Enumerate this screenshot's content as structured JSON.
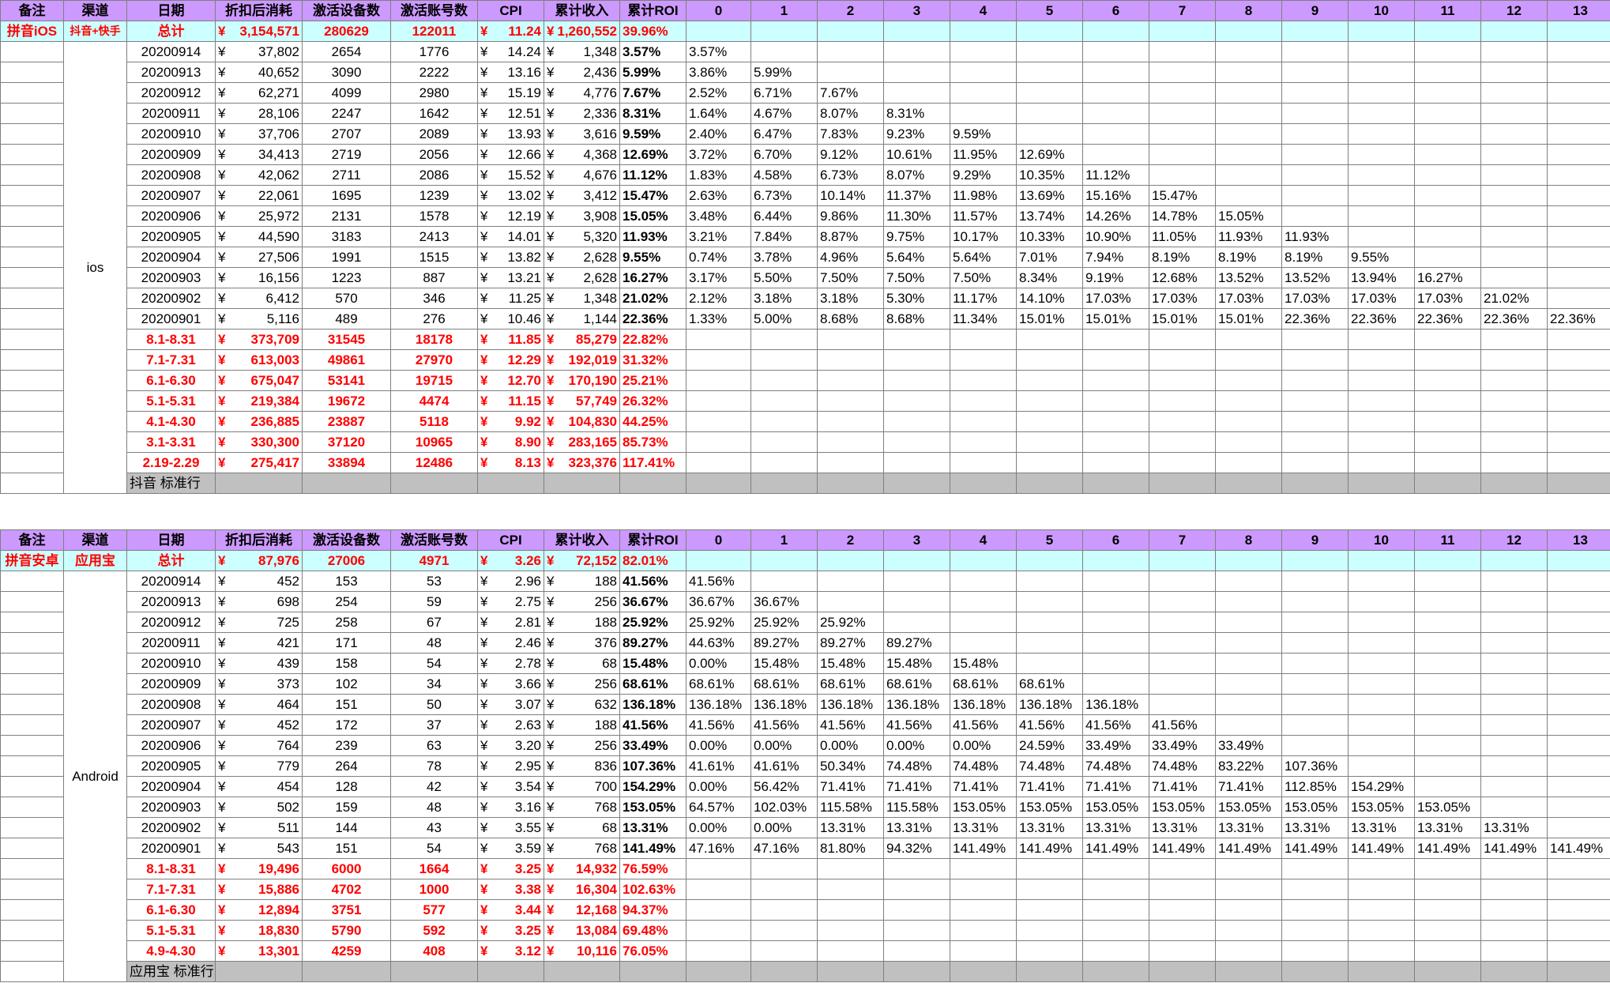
{
  "columns": [
    "备注",
    "渠道",
    "日期",
    "折扣后消耗",
    "激活设备数",
    "激活账号数",
    "CPI",
    "累计收入",
    "累计ROI",
    "0",
    "1",
    "2",
    "3",
    "4",
    "5",
    "6",
    "7",
    "8",
    "9",
    "10",
    "11",
    "12",
    "13"
  ],
  "currency": "¥",
  "sections": [
    {
      "remark": "拼音iOS",
      "channel": "抖音+快手",
      "platform": "ios",
      "total": {
        "label": "总计",
        "spend": "3,154,571",
        "devices": "280629",
        "accounts": "122011",
        "cpi": "11.24",
        "revenue": "1,260,552",
        "roi": "39.96%"
      },
      "daily": [
        {
          "date": "20200914",
          "spend": "37,802",
          "devices": "2654",
          "accounts": "1776",
          "cpi": "14.24",
          "revenue": "1,348",
          "roi": "3.57%",
          "days": [
            "3.57%"
          ]
        },
        {
          "date": "20200913",
          "spend": "40,652",
          "devices": "3090",
          "accounts": "2222",
          "cpi": "13.16",
          "revenue": "2,436",
          "roi": "5.99%",
          "days": [
            "3.86%",
            "5.99%"
          ]
        },
        {
          "date": "20200912",
          "spend": "62,271",
          "devices": "4099",
          "accounts": "2980",
          "cpi": "15.19",
          "revenue": "4,776",
          "roi": "7.67%",
          "days": [
            "2.52%",
            "6.71%",
            "7.67%"
          ]
        },
        {
          "date": "20200911",
          "spend": "28,106",
          "devices": "2247",
          "accounts": "1642",
          "cpi": "12.51",
          "revenue": "2,336",
          "roi": "8.31%",
          "days": [
            "1.64%",
            "4.67%",
            "8.07%",
            "8.31%"
          ]
        },
        {
          "date": "20200910",
          "spend": "37,706",
          "devices": "2707",
          "accounts": "2089",
          "cpi": "13.93",
          "revenue": "3,616",
          "roi": "9.59%",
          "days": [
            "2.40%",
            "6.47%",
            "7.83%",
            "9.23%",
            "9.59%"
          ]
        },
        {
          "date": "20200909",
          "spend": "34,413",
          "devices": "2719",
          "accounts": "2056",
          "cpi": "12.66",
          "revenue": "4,368",
          "roi": "12.69%",
          "days": [
            "3.72%",
            "6.70%",
            "9.12%",
            "10.61%",
            "11.95%",
            "12.69%"
          ]
        },
        {
          "date": "20200908",
          "spend": "42,062",
          "devices": "2711",
          "accounts": "2086",
          "cpi": "15.52",
          "revenue": "4,676",
          "roi": "11.12%",
          "days": [
            "1.83%",
            "4.58%",
            "6.73%",
            "8.07%",
            "9.29%",
            "10.35%",
            "11.12%"
          ]
        },
        {
          "date": "20200907",
          "spend": "22,061",
          "devices": "1695",
          "accounts": "1239",
          "cpi": "13.02",
          "revenue": "3,412",
          "roi": "15.47%",
          "days": [
            "2.63%",
            "6.73%",
            "10.14%",
            "11.37%",
            "11.98%",
            "13.69%",
            "15.16%",
            "15.47%"
          ]
        },
        {
          "date": "20200906",
          "spend": "25,972",
          "devices": "2131",
          "accounts": "1578",
          "cpi": "12.19",
          "revenue": "3,908",
          "roi": "15.05%",
          "days": [
            "3.48%",
            "6.44%",
            "9.86%",
            "11.30%",
            "11.57%",
            "13.74%",
            "14.26%",
            "14.78%",
            "15.05%"
          ]
        },
        {
          "date": "20200905",
          "spend": "44,590",
          "devices": "3183",
          "accounts": "2413",
          "cpi": "14.01",
          "revenue": "5,320",
          "roi": "11.93%",
          "days": [
            "3.21%",
            "7.84%",
            "8.87%",
            "9.75%",
            "10.17%",
            "10.33%",
            "10.90%",
            "11.05%",
            "11.93%",
            "11.93%"
          ]
        },
        {
          "date": "20200904",
          "spend": "27,506",
          "devices": "1991",
          "accounts": "1515",
          "cpi": "13.82",
          "revenue": "2,628",
          "roi": "9.55%",
          "days": [
            "0.74%",
            "3.78%",
            "4.96%",
            "5.64%",
            "5.64%",
            "7.01%",
            "7.94%",
            "8.19%",
            "8.19%",
            "8.19%",
            "9.55%"
          ]
        },
        {
          "date": "20200903",
          "spend": "16,156",
          "devices": "1223",
          "accounts": "887",
          "cpi": "13.21",
          "revenue": "2,628",
          "roi": "16.27%",
          "days": [
            "3.17%",
            "5.50%",
            "7.50%",
            "7.50%",
            "7.50%",
            "8.34%",
            "9.19%",
            "12.68%",
            "13.52%",
            "13.52%",
            "13.94%",
            "16.27%"
          ]
        },
        {
          "date": "20200902",
          "spend": "6,412",
          "devices": "570",
          "accounts": "346",
          "cpi": "11.25",
          "revenue": "1,348",
          "roi": "21.02%",
          "days": [
            "2.12%",
            "3.18%",
            "3.18%",
            "5.30%",
            "11.17%",
            "14.10%",
            "17.03%",
            "17.03%",
            "17.03%",
            "17.03%",
            "17.03%",
            "17.03%",
            "21.02%"
          ]
        },
        {
          "date": "20200901",
          "spend": "5,116",
          "devices": "489",
          "accounts": "276",
          "cpi": "10.46",
          "revenue": "1,144",
          "roi": "22.36%",
          "days": [
            "1.33%",
            "5.00%",
            "8.68%",
            "8.68%",
            "11.34%",
            "15.01%",
            "15.01%",
            "15.01%",
            "15.01%",
            "22.36%",
            "22.36%",
            "22.36%",
            "22.36%",
            "22.36%"
          ]
        }
      ],
      "periods": [
        {
          "date": "8.1-8.31",
          "spend": "373,709",
          "devices": "31545",
          "accounts": "18178",
          "cpi": "11.85",
          "revenue": "85,279",
          "roi": "22.82%"
        },
        {
          "date": "7.1-7.31",
          "spend": "613,003",
          "devices": "49861",
          "accounts": "27970",
          "cpi": "12.29",
          "revenue": "192,019",
          "roi": "31.32%"
        },
        {
          "date": "6.1-6.30",
          "spend": "675,047",
          "devices": "53141",
          "accounts": "19715",
          "cpi": "12.70",
          "revenue": "170,190",
          "roi": "25.21%"
        },
        {
          "date": "5.1-5.31",
          "spend": "219,384",
          "devices": "19672",
          "accounts": "4474",
          "cpi": "11.15",
          "revenue": "57,749",
          "roi": "26.32%"
        },
        {
          "date": "4.1-4.30",
          "spend": "236,885",
          "devices": "23887",
          "accounts": "5118",
          "cpi": "9.92",
          "revenue": "104,830",
          "roi": "44.25%"
        },
        {
          "date": "3.1-3.31",
          "spend": "330,300",
          "devices": "37120",
          "accounts": "10965",
          "cpi": "8.90",
          "revenue": "283,165",
          "roi": "85.73%"
        },
        {
          "date": "2.19-2.29",
          "spend": "275,417",
          "devices": "33894",
          "accounts": "12486",
          "cpi": "8.13",
          "revenue": "323,376",
          "roi": "117.41%"
        }
      ],
      "footer_note": "抖音 标准行"
    },
    {
      "remark": "拼音安卓",
      "channel": "应用宝",
      "platform": "Android",
      "total": {
        "label": "总计",
        "spend": "87,976",
        "devices": "27006",
        "accounts": "4971",
        "cpi": "3.26",
        "revenue": "72,152",
        "roi": "82.01%"
      },
      "daily": [
        {
          "date": "20200914",
          "spend": "452",
          "devices": "153",
          "accounts": "53",
          "cpi": "2.96",
          "revenue": "188",
          "roi": "41.56%",
          "days": [
            "41.56%"
          ]
        },
        {
          "date": "20200913",
          "spend": "698",
          "devices": "254",
          "accounts": "59",
          "cpi": "2.75",
          "revenue": "256",
          "roi": "36.67%",
          "days": [
            "36.67%",
            "36.67%"
          ]
        },
        {
          "date": "20200912",
          "spend": "725",
          "devices": "258",
          "accounts": "67",
          "cpi": "2.81",
          "revenue": "188",
          "roi": "25.92%",
          "days": [
            "25.92%",
            "25.92%",
            "25.92%"
          ]
        },
        {
          "date": "20200911",
          "spend": "421",
          "devices": "171",
          "accounts": "48",
          "cpi": "2.46",
          "revenue": "376",
          "roi": "89.27%",
          "days": [
            "44.63%",
            "89.27%",
            "89.27%",
            "89.27%"
          ]
        },
        {
          "date": "20200910",
          "spend": "439",
          "devices": "158",
          "accounts": "54",
          "cpi": "2.78",
          "revenue": "68",
          "roi": "15.48%",
          "days": [
            "0.00%",
            "15.48%",
            "15.48%",
            "15.48%",
            "15.48%"
          ]
        },
        {
          "date": "20200909",
          "spend": "373",
          "devices": "102",
          "accounts": "34",
          "cpi": "3.66",
          "revenue": "256",
          "roi": "68.61%",
          "days": [
            "68.61%",
            "68.61%",
            "68.61%",
            "68.61%",
            "68.61%",
            "68.61%"
          ]
        },
        {
          "date": "20200908",
          "spend": "464",
          "devices": "151",
          "accounts": "50",
          "cpi": "3.07",
          "revenue": "632",
          "roi": "136.18%",
          "days": [
            "136.18%",
            "136.18%",
            "136.18%",
            "136.18%",
            "136.18%",
            "136.18%",
            "136.18%"
          ]
        },
        {
          "date": "20200907",
          "spend": "452",
          "devices": "172",
          "accounts": "37",
          "cpi": "2.63",
          "revenue": "188",
          "roi": "41.56%",
          "days": [
            "41.56%",
            "41.56%",
            "41.56%",
            "41.56%",
            "41.56%",
            "41.56%",
            "41.56%",
            "41.56%"
          ]
        },
        {
          "date": "20200906",
          "spend": "764",
          "devices": "239",
          "accounts": "63",
          "cpi": "3.20",
          "revenue": "256",
          "roi": "33.49%",
          "days": [
            "0.00%",
            "0.00%",
            "0.00%",
            "0.00%",
            "0.00%",
            "24.59%",
            "33.49%",
            "33.49%",
            "33.49%"
          ]
        },
        {
          "date": "20200905",
          "spend": "779",
          "devices": "264",
          "accounts": "78",
          "cpi": "2.95",
          "revenue": "836",
          "roi": "107.36%",
          "days": [
            "41.61%",
            "41.61%",
            "50.34%",
            "74.48%",
            "74.48%",
            "74.48%",
            "74.48%",
            "74.48%",
            "83.22%",
            "107.36%"
          ]
        },
        {
          "date": "20200904",
          "spend": "454",
          "devices": "128",
          "accounts": "42",
          "cpi": "3.54",
          "revenue": "700",
          "roi": "154.29%",
          "days": [
            "0.00%",
            "56.42%",
            "71.41%",
            "71.41%",
            "71.41%",
            "71.41%",
            "71.41%",
            "71.41%",
            "71.41%",
            "112.85%",
            "154.29%"
          ]
        },
        {
          "date": "20200903",
          "spend": "502",
          "devices": "159",
          "accounts": "48",
          "cpi": "3.16",
          "revenue": "768",
          "roi": "153.05%",
          "days": [
            "64.57%",
            "102.03%",
            "115.58%",
            "115.58%",
            "153.05%",
            "153.05%",
            "153.05%",
            "153.05%",
            "153.05%",
            "153.05%",
            "153.05%",
            "153.05%"
          ]
        },
        {
          "date": "20200902",
          "spend": "511",
          "devices": "144",
          "accounts": "43",
          "cpi": "3.55",
          "revenue": "68",
          "roi": "13.31%",
          "days": [
            "0.00%",
            "0.00%",
            "13.31%",
            "13.31%",
            "13.31%",
            "13.31%",
            "13.31%",
            "13.31%",
            "13.31%",
            "13.31%",
            "13.31%",
            "13.31%",
            "13.31%"
          ]
        },
        {
          "date": "20200901",
          "spend": "543",
          "devices": "151",
          "accounts": "54",
          "cpi": "3.59",
          "revenue": "768",
          "roi": "141.49%",
          "days": [
            "47.16%",
            "47.16%",
            "81.80%",
            "94.32%",
            "141.49%",
            "141.49%",
            "141.49%",
            "141.49%",
            "141.49%",
            "141.49%",
            "141.49%",
            "141.49%",
            "141.49%",
            "141.49%"
          ]
        }
      ],
      "periods": [
        {
          "date": "8.1-8.31",
          "spend": "19,496",
          "devices": "6000",
          "accounts": "1664",
          "cpi": "3.25",
          "revenue": "14,932",
          "roi": "76.59%"
        },
        {
          "date": "7.1-7.31",
          "spend": "15,886",
          "devices": "4702",
          "accounts": "1000",
          "cpi": "3.38",
          "revenue": "16,304",
          "roi": "102.63%"
        },
        {
          "date": "6.1-6.30",
          "spend": "12,894",
          "devices": "3751",
          "accounts": "577",
          "cpi": "3.44",
          "revenue": "12,168",
          "roi": "94.37%"
        },
        {
          "date": "5.1-5.31",
          "spend": "18,830",
          "devices": "5790",
          "accounts": "592",
          "cpi": "3.25",
          "revenue": "13,084",
          "roi": "69.48%"
        },
        {
          "date": "4.9-4.30",
          "spend": "13,301",
          "devices": "4259",
          "accounts": "408",
          "cpi": "3.12",
          "revenue": "10,116",
          "roi": "76.05%"
        }
      ],
      "footer_note": "应用宝 标准行"
    }
  ],
  "colors": {
    "header_bg": "#cc99ff",
    "total_bg": "#ccffff",
    "highlight_red": "#ff0000",
    "footer_gray": "#c0c0c0"
  }
}
